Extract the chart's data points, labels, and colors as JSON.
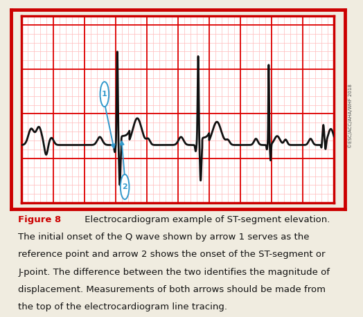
{
  "bg_outer": "#f0ece0",
  "bg_inner": "#ffffff",
  "outer_border_color": "#cc0000",
  "inner_border_color": "#cc0000",
  "grid_major_color": "#dd0000",
  "grid_minor_color": "#ffbbbb",
  "ecg_color": "#111111",
  "ecg_lw": 2.0,
  "arrow_color": "#3399cc",
  "copyright_text": "©ESC/ACC/AHA/WHF 2018",
  "figure_label": "Figure 8",
  "figure_label_color": "#cc0000",
  "caption_color": "#111111",
  "caption_lines": [
    " Electrocardiogram example of ST-segment elevation.",
    "The initial onset of the Q wave shown by arrow 1 serves as the",
    "reference point and arrow 2 shows the onset of the ST-segment or",
    "J-point. The difference between the two identifies the magnitude of",
    "displacement. Measurements of both arrows should be made from",
    "the top of the electrocardiogram line tracing."
  ]
}
